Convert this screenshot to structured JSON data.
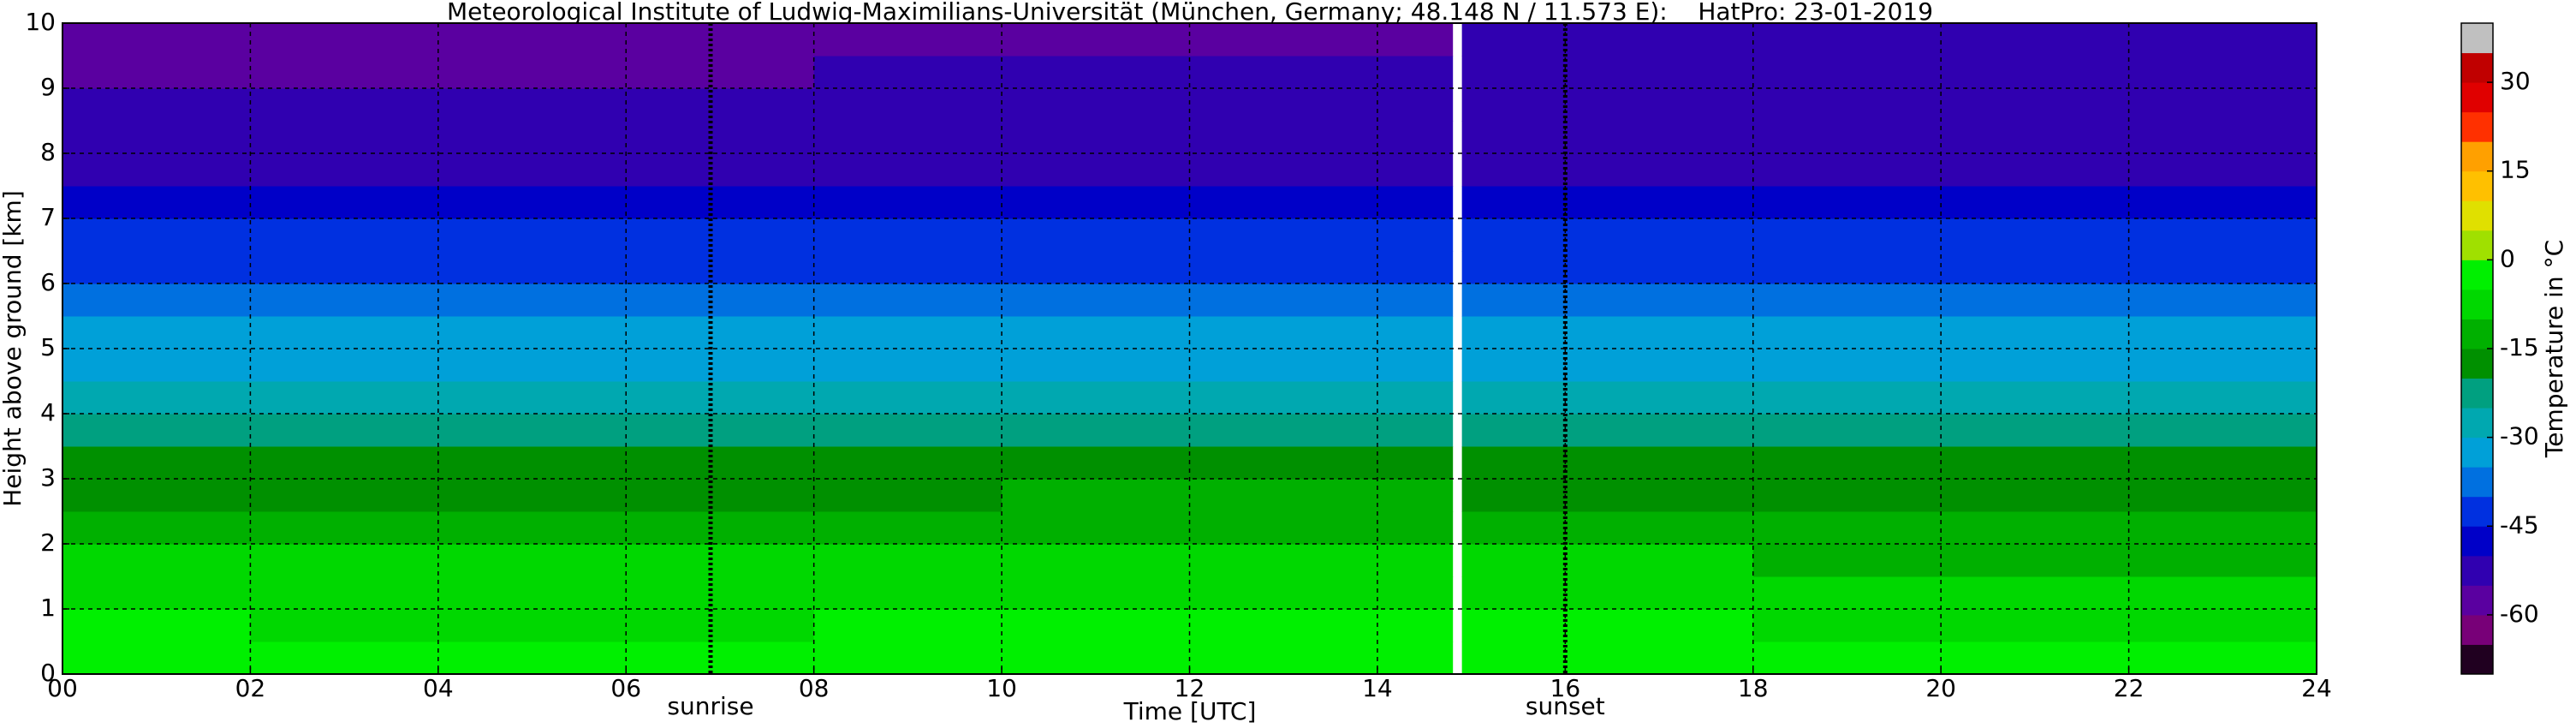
{
  "chart_data": {
    "type": "heatmap",
    "title": "Meteorological Institute of Ludwig-Maximilians-Universität (München, Germany; 48.148 N / 11.573 E):    HatPro: 23-01-2019",
    "xlabel": "Time [UTC]",
    "ylabel": "Height above ground [km]",
    "xlim": [
      0,
      24
    ],
    "ylim": [
      0,
      10
    ],
    "xticks": [
      {
        "value": 0,
        "label": "00"
      },
      {
        "value": 2,
        "label": "02"
      },
      {
        "value": 4,
        "label": "04"
      },
      {
        "value": 6,
        "label": "06"
      },
      {
        "value": 8,
        "label": "08"
      },
      {
        "value": 10,
        "label": "10"
      },
      {
        "value": 12,
        "label": "12"
      },
      {
        "value": 14,
        "label": "14"
      },
      {
        "value": 16,
        "label": "16"
      },
      {
        "value": 18,
        "label": "18"
      },
      {
        "value": 20,
        "label": "20"
      },
      {
        "value": 22,
        "label": "22"
      },
      {
        "value": 24,
        "label": "24"
      }
    ],
    "yticks": [
      0,
      1,
      2,
      3,
      4,
      5,
      6,
      7,
      8,
      9,
      10
    ],
    "grid": true,
    "annotations": [
      {
        "x": 6.9,
        "label": "sunrise"
      },
      {
        "x": 16.0,
        "label": "sunset"
      }
    ],
    "x_edges": [
      0,
      2,
      4,
      6,
      8,
      10,
      12,
      14,
      14.8,
      14.9,
      16,
      18,
      20,
      22,
      24
    ],
    "y_edges": [
      0,
      0.5,
      1,
      1.5,
      2,
      2.5,
      3,
      3.5,
      4,
      4.5,
      5,
      5.5,
      6,
      6.5,
      7,
      7.5,
      8,
      8.5,
      9,
      9.5,
      10
    ],
    "z": [
      [
        -3,
        -3.5,
        -4,
        -4,
        -2.5,
        -1.5,
        -1,
        -1,
        null,
        -1.5,
        -2.5,
        -3,
        -3.5,
        -4
      ],
      [
        -5,
        -5.5,
        -6,
        -6,
        -5,
        -4,
        -3.5,
        -3.5,
        null,
        -4,
        -5,
        -5.5,
        -6,
        -6
      ],
      [
        -7,
        -7,
        -7.5,
        -7.5,
        -7,
        -6.5,
        -6,
        -6,
        null,
        -6.5,
        -7,
        -7.5,
        -8,
        -8
      ],
      [
        -9,
        -9,
        -9.5,
        -9.5,
        -9,
        -8.5,
        -8,
        -8,
        null,
        -9,
        -10,
        -11,
        -11,
        -11
      ],
      [
        -12,
        -12,
        -12.5,
        -12.5,
        -12,
        -12,
        -11.5,
        -11.5,
        null,
        -12.5,
        -13.5,
        -14,
        -14,
        -14
      ],
      [
        -16,
        -16,
        -16,
        -16,
        -15.5,
        -15,
        -15,
        -15,
        null,
        -16,
        -17,
        -17,
        -17,
        -17
      ],
      [
        -19,
        -19,
        -19,
        -19,
        -19,
        -18.5,
        -18.5,
        -18.5,
        null,
        -19.5,
        -20,
        -20,
        -20,
        -20
      ],
      [
        -24,
        -24,
        -24,
        -24,
        -23.5,
        -23.5,
        -23.5,
        -23.5,
        null,
        -24,
        -24,
        -24.5,
        -24.5,
        -24.5
      ],
      [
        -28,
        -28,
        -28,
        -28,
        -28,
        -28,
        -28,
        -28,
        null,
        -28,
        -28,
        -28,
        -28,
        -28
      ],
      [
        -32,
        -32,
        -32,
        -32,
        -32,
        -32,
        -32,
        -32,
        null,
        -32,
        -32,
        -32,
        -32,
        -32
      ],
      [
        -34,
        -34,
        -34,
        -34,
        -34,
        -34,
        -34,
        -34,
        null,
        -34,
        -34,
        -34,
        -34,
        -34
      ],
      [
        -37,
        -37,
        -37,
        -37,
        -37,
        -37,
        -37,
        -37,
        null,
        -37,
        -37,
        -37,
        -37,
        -37
      ],
      [
        -41,
        -41,
        -41,
        -41,
        -41,
        -41,
        -41,
        -41,
        null,
        -41,
        -41,
        -41,
        -41,
        -41
      ],
      [
        -44,
        -44,
        -44,
        -44,
        -44,
        -44,
        -44,
        -44,
        null,
        -44,
        -44,
        -44,
        -44,
        -44
      ],
      [
        -47,
        -47,
        -47,
        -47,
        -47,
        -47,
        -47,
        -47,
        null,
        -47,
        -47,
        -47,
        -47,
        -47
      ],
      [
        -51,
        -51,
        -51,
        -51,
        -51,
        -51,
        -51,
        -51,
        null,
        -51,
        -51,
        -51,
        -51,
        -51
      ],
      [
        -53,
        -53,
        -53,
        -53,
        -53,
        -53,
        -53,
        -53,
        null,
        -53,
        -53,
        -53,
        -53,
        -53
      ],
      [
        -54,
        -54,
        -54,
        -54,
        -54,
        -54,
        -54,
        -54,
        null,
        -54,
        -54,
        -54,
        -54,
        -54
      ],
      [
        -56,
        -56,
        -55.5,
        -55.5,
        -54,
        -54,
        -54,
        -54,
        null,
        -54,
        -53,
        -53,
        -53,
        -53
      ],
      [
        -58,
        -58,
        -57,
        -57,
        -56,
        -56,
        -56,
        -56,
        null,
        -55,
        -54,
        -54,
        -54,
        -54
      ]
    ],
    "colorbar": {
      "label": "Temperature in °C",
      "lim": [
        -70,
        40
      ],
      "ticks": [
        -60,
        -45,
        -30,
        -15,
        0,
        15,
        30
      ],
      "levels": [
        -70,
        -65,
        -60,
        -55,
        -50,
        -45,
        -40,
        -35,
        -30,
        -25,
        -20,
        -15,
        -10,
        -5,
        0,
        5,
        10,
        15,
        20,
        25,
        30,
        35,
        40
      ],
      "colors": [
        "#200020",
        "#780078",
        "#5a00a0",
        "#3000b0",
        "#0000c8",
        "#0030e0",
        "#0070e0",
        "#00a0d8",
        "#00a8b0",
        "#00a080",
        "#009000",
        "#00b000",
        "#00d800",
        "#00f000",
        "#a0e000",
        "#e0e000",
        "#ffc000",
        "#ffa000",
        "#ff3000",
        "#e00000",
        "#c00000",
        "#c0c0c0"
      ]
    }
  }
}
